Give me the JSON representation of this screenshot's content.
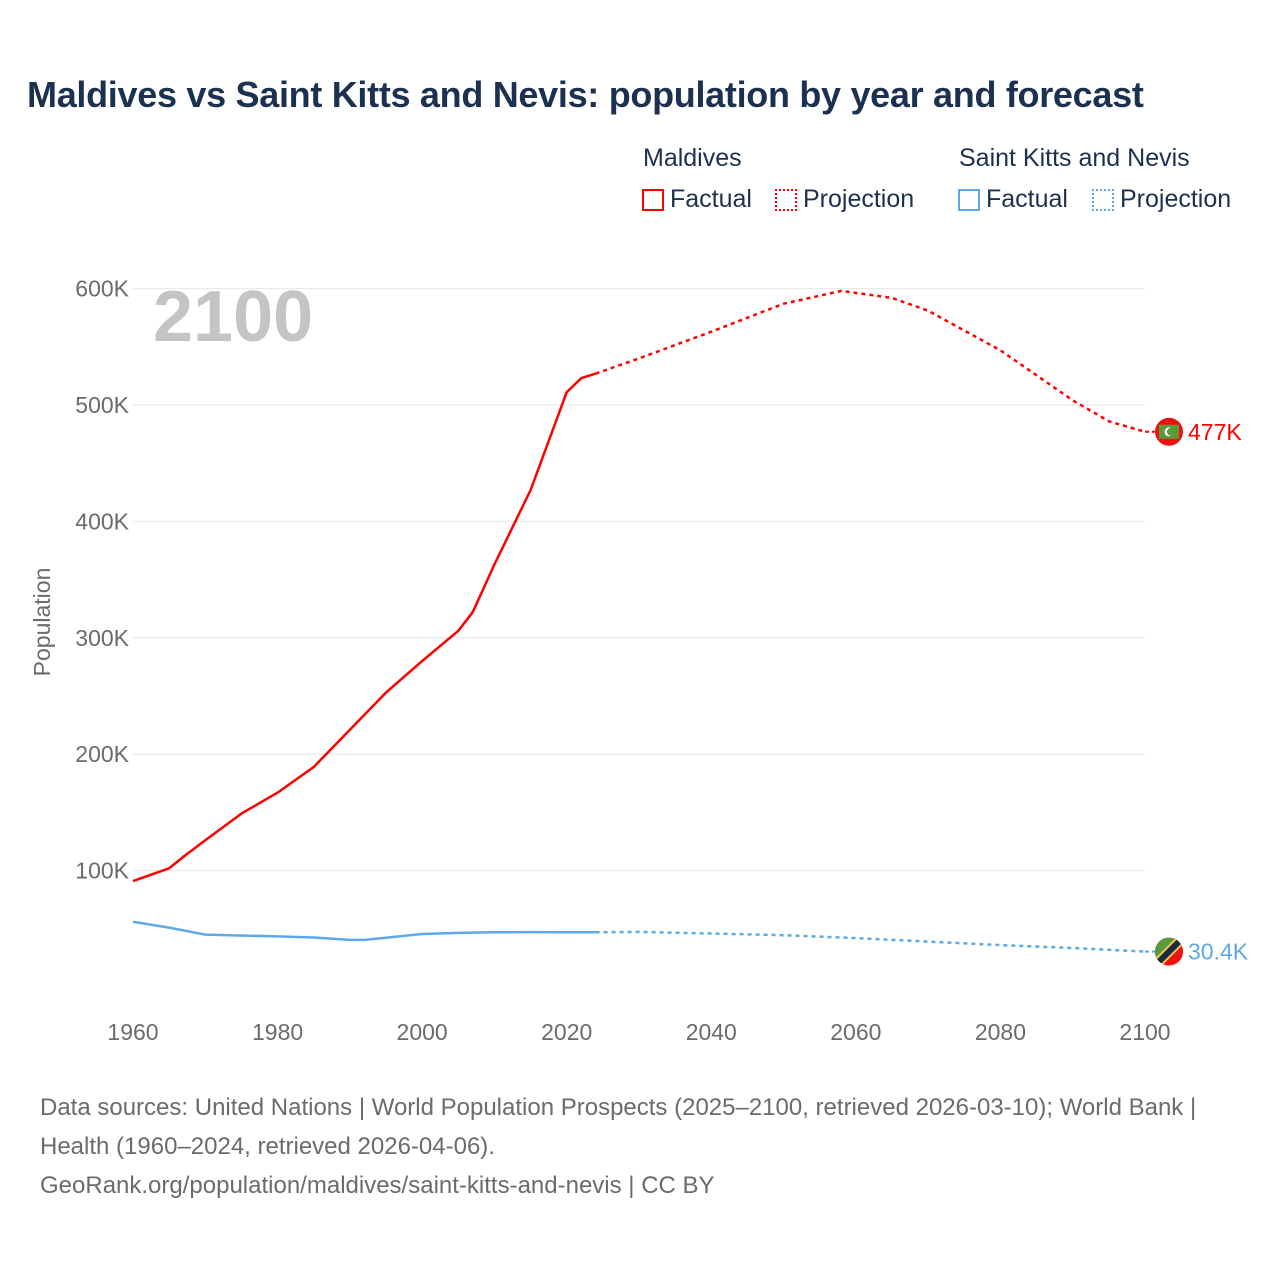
{
  "title": "Maldives vs Saint Kitts and Nevis: population by year and forecast",
  "legend": {
    "groups": [
      {
        "name": "Maldives",
        "factual": "Factual",
        "projection": "Projection"
      },
      {
        "name": "Saint Kitts and Nevis",
        "factual": "Factual",
        "projection": "Projection"
      }
    ]
  },
  "source": {
    "line1": "Data sources: United Nations | World Population Prospects (2025–2100, retrieved 2026-03-10); World Bank | Health (1960–2024, retrieved 2026-04-06).",
    "line2": "GeoRank.org/population/maldives/saint-kitts-and-nevis | CC BY"
  },
  "chart_data": {
    "type": "line",
    "title": "Maldives vs Saint Kitts and Nevis: population by year and forecast",
    "year_watermark": "2100",
    "xlabel": "",
    "ylabel": "Population",
    "xlim": [
      1960,
      2100
    ],
    "ylim": [
      0,
      620000
    ],
    "x_ticks": [
      1960,
      1980,
      2000,
      2020,
      2040,
      2060,
      2080,
      2100
    ],
    "x_tick_labels": [
      "1960",
      "1980",
      "2000",
      "2020",
      "2040",
      "2060",
      "2080",
      "2100"
    ],
    "y_ticks": [
      100000,
      200000,
      300000,
      400000,
      500000,
      600000
    ],
    "y_tick_labels": [
      "100K",
      "200K",
      "300K",
      "400K",
      "500K",
      "600K"
    ],
    "grid": true,
    "legend_placement": "top-right",
    "series": [
      {
        "name": "Maldives",
        "color": "#ff0000",
        "end_label": "477K",
        "flag": "maldives",
        "factual": {
          "x": [
            1960,
            1965,
            1967,
            1970,
            1975,
            1980,
            1985,
            1990,
            1995,
            2000,
            2005,
            2007,
            2010,
            2015,
            2020,
            2022,
            2024
          ],
          "y": [
            91000,
            102000,
            112000,
            126000,
            149000,
            167000,
            189000,
            221000,
            253000,
            280000,
            306000,
            322000,
            363000,
            427000,
            511000,
            523000,
            527000
          ]
        },
        "projection": {
          "x": [
            2024,
            2030,
            2040,
            2050,
            2058,
            2065,
            2070,
            2080,
            2090,
            2095,
            2100
          ],
          "y": [
            527000,
            540000,
            563000,
            587000,
            598000,
            592000,
            581000,
            547000,
            504000,
            486000,
            477000
          ]
        }
      },
      {
        "name": "Saint Kitts and Nevis",
        "color": "#5fa8e8",
        "end_label": "30.4K",
        "flag": "saint-kitts-and-nevis",
        "factual": {
          "x": [
            1960,
            1965,
            1970,
            1980,
            1985,
            1990,
            1992,
            2000,
            2005,
            2010,
            2015,
            2020,
            2024
          ],
          "y": [
            56000,
            51000,
            45000,
            43500,
            42500,
            40500,
            40500,
            45500,
            46500,
            47000,
            47200,
            47000,
            47000
          ]
        },
        "projection": {
          "x": [
            2024,
            2030,
            2040,
            2050,
            2060,
            2070,
            2080,
            2090,
            2100
          ],
          "y": [
            47000,
            47300,
            46000,
            44500,
            42000,
            39000,
            36000,
            33500,
            30400
          ]
        }
      }
    ]
  }
}
